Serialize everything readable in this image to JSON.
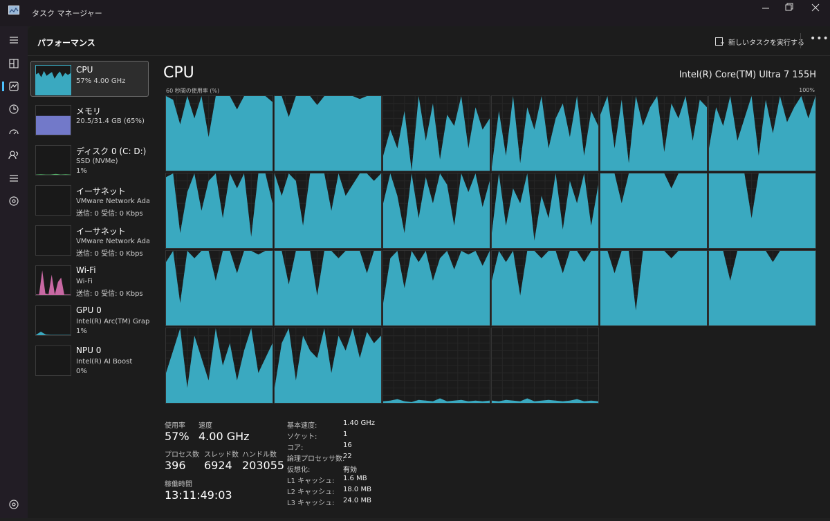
{
  "window": {
    "title": "タスク マネージャー"
  },
  "header": {
    "title": "パフォーマンス",
    "action": "新しいタスクを実行する"
  },
  "sidebar": [
    {
      "name": "CPU",
      "lines": [
        "57% 4.00 GHz"
      ],
      "color": "#3aa9c0",
      "history": [
        70,
        75,
        60,
        82,
        65,
        72,
        78,
        55,
        70,
        80,
        62,
        75,
        68,
        74
      ]
    },
    {
      "name": "メモリ",
      "lines": [
        "20.5/31.4 GB (65%)"
      ],
      "color": "#7279c9",
      "history": [
        65,
        65,
        65,
        65,
        65,
        65
      ]
    },
    {
      "name": "ディスク 0 (C: D:)",
      "lines": [
        "SSD (NVMe)",
        "1%"
      ],
      "color": "#56b06a",
      "history": [
        1,
        2,
        1,
        1,
        3,
        1,
        2,
        1
      ]
    },
    {
      "name": "イーサネット",
      "lines": [
        "VMware Network Adapt",
        "送信: 0 受信: 0 Kbps"
      ],
      "color": "#c08a4a",
      "history": [
        0,
        0,
        0,
        0
      ]
    },
    {
      "name": "イーサネット",
      "lines": [
        "VMware Network Adapt",
        "送信: 0 受信: 0 Kbps"
      ],
      "color": "#c08a4a",
      "history": [
        0,
        0,
        0,
        0
      ]
    },
    {
      "name": "Wi-Fi",
      "lines": [
        "Wi-Fi",
        "送信: 0 受信: 0 Kbps"
      ],
      "color": "#c868a3",
      "history": [
        2,
        2,
        85,
        5,
        3,
        70,
        2,
        45,
        60,
        2,
        2,
        2
      ]
    },
    {
      "name": "GPU 0",
      "lines": [
        "Intel(R) Arc(TM) Graphic",
        "1%"
      ],
      "color": "#3aa9c0",
      "history": [
        1,
        12,
        2,
        1,
        1,
        1,
        1,
        1
      ]
    },
    {
      "name": "NPU 0",
      "lines": [
        "Intel(R) AI Boost",
        "0%"
      ],
      "color": "#3aa9c0",
      "history": [
        0,
        0,
        0,
        0
      ]
    }
  ],
  "main": {
    "title": "CPU",
    "model": "Intel(R) Core(TM) Ultra 7 155H",
    "graph_label": "60 秒間の使用率 (%)",
    "graph_max": "100%",
    "color": "#3aa9c0",
    "cores": [
      [
        100,
        95,
        62,
        100,
        70,
        100,
        45,
        100,
        100,
        100,
        82,
        100,
        100,
        100,
        100,
        92
      ],
      [
        100,
        100,
        72,
        100,
        100,
        100,
        88,
        100,
        100,
        100,
        100,
        100,
        96,
        100,
        100,
        100
      ],
      [
        20,
        55,
        30,
        80,
        0,
        100,
        40,
        90,
        15,
        75,
        60,
        100,
        30,
        85,
        55,
        70
      ],
      [
        5,
        80,
        20,
        100,
        10,
        85,
        55,
        100,
        30,
        70,
        90,
        45,
        100,
        20,
        80,
        60
      ],
      [
        75,
        100,
        30,
        95,
        10,
        100,
        60,
        85,
        100,
        25,
        90,
        70,
        100,
        40,
        95,
        85
      ],
      [
        30,
        85,
        60,
        100,
        40,
        70,
        100,
        20,
        95,
        50,
        100,
        65,
        85,
        100,
        70,
        100
      ],
      [
        95,
        100,
        20,
        75,
        100,
        50,
        90,
        100,
        40,
        100,
        80,
        100,
        15,
        100,
        100,
        60
      ],
      [
        100,
        70,
        100,
        90,
        30,
        100,
        100,
        100,
        50,
        100,
        70,
        85,
        100,
        100,
        90,
        100
      ],
      [
        60,
        100,
        70,
        20,
        100,
        40,
        95,
        60,
        100,
        85,
        30,
        100,
        75,
        100,
        55,
        90
      ],
      [
        20,
        100,
        30,
        80,
        60,
        100,
        10,
        70,
        40,
        100,
        25,
        90,
        60,
        100,
        30,
        85
      ],
      [
        100,
        100,
        100,
        60,
        100,
        100,
        100,
        100,
        100,
        100,
        80,
        100,
        100,
        100,
        100,
        100
      ],
      [
        100,
        100,
        100,
        100,
        100,
        100,
        40,
        100,
        100,
        100,
        100,
        100,
        100,
        100,
        100,
        100
      ],
      [
        85,
        100,
        30,
        100,
        90,
        100,
        100,
        60,
        100,
        100,
        70,
        100,
        100,
        95,
        100,
        100
      ],
      [
        100,
        100,
        55,
        100,
        100,
        100,
        40,
        100,
        100,
        90,
        100,
        100,
        100,
        70,
        100,
        100
      ],
      [
        30,
        90,
        100,
        50,
        100,
        85,
        100,
        60,
        90,
        100,
        75,
        100,
        95,
        100,
        80,
        100
      ],
      [
        60,
        100,
        85,
        100,
        40,
        100,
        100,
        90,
        100,
        100,
        70,
        100,
        100,
        85,
        100,
        100
      ],
      [
        100,
        100,
        70,
        100,
        100,
        20,
        100,
        100,
        100,
        100,
        90,
        100,
        100,
        100,
        100,
        100
      ],
      [
        100,
        100,
        100,
        60,
        100,
        100,
        100,
        100,
        100,
        85,
        100,
        100,
        100,
        100,
        100,
        100
      ],
      [
        40,
        70,
        100,
        20,
        90,
        60,
        30,
        100,
        50,
        80,
        30,
        70,
        100,
        40,
        60,
        80
      ],
      [
        20,
        80,
        100,
        30,
        90,
        70,
        60,
        100,
        40,
        90,
        70,
        100,
        60,
        95,
        80,
        90
      ],
      [
        2,
        3,
        5,
        2,
        1,
        4,
        3,
        2,
        6,
        2,
        3,
        4,
        2,
        3,
        2,
        3
      ],
      [
        3,
        2,
        4,
        3,
        2,
        6,
        2,
        3,
        4,
        3,
        2,
        3,
        5,
        2,
        3,
        2
      ]
    ]
  },
  "stats": [
    {
      "label": "使用率",
      "value": "57%"
    },
    {
      "label": "速度",
      "value": "4.00 GHz"
    },
    {
      "label": "プロセス数",
      "value": "396"
    },
    {
      "label": "スレッド数",
      "value": "6924"
    },
    {
      "label": "ハンドル数",
      "value": "203055"
    },
    {
      "label": "稼働時間",
      "value": "13:11:49:03"
    }
  ],
  "specs": [
    {
      "label": "基本速度:",
      "value": "1.40 GHz"
    },
    {
      "label": "ソケット:",
      "value": "1"
    },
    {
      "label": "コア:",
      "value": "16"
    },
    {
      "label": "論理プロセッサ数:",
      "value": "22"
    },
    {
      "label": "仮想化:",
      "value": "有効"
    },
    {
      "label": "L1 キャッシュ:",
      "value": "1.6 MB"
    },
    {
      "label": "L2 キャッシュ:",
      "value": "18.0 MB"
    },
    {
      "label": "L3 キャッシュ:",
      "value": "24.0 MB"
    }
  ]
}
